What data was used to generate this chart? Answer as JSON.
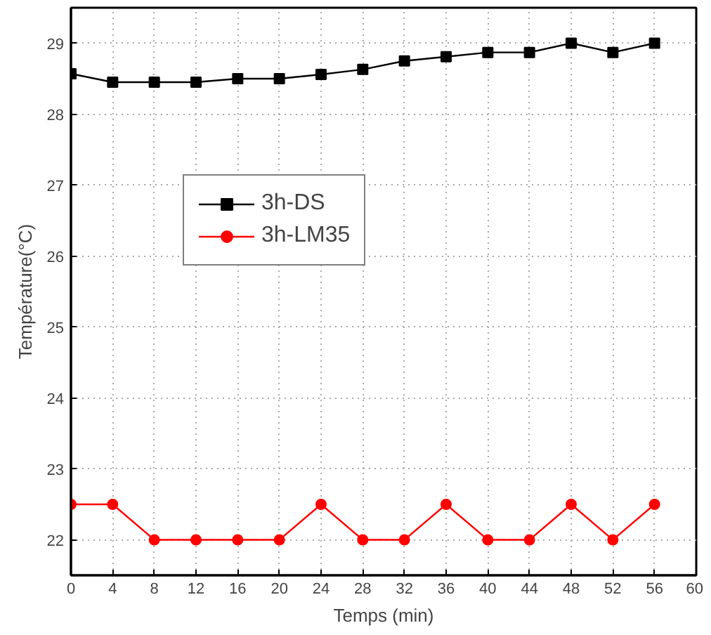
{
  "chart_data": {
    "type": "line",
    "xlabel": "Temps (min)",
    "ylabel": "Température(°C)",
    "x": [
      0,
      4,
      8,
      12,
      16,
      20,
      24,
      28,
      32,
      36,
      40,
      44,
      48,
      52,
      56
    ],
    "series": [
      {
        "name": "3h-DS",
        "color": "#000000",
        "marker": "square",
        "values": [
          28.57,
          28.45,
          28.45,
          28.45,
          28.5,
          28.5,
          28.56,
          28.63,
          28.75,
          28.81,
          28.87,
          28.87,
          29.0,
          28.87,
          29.0
        ]
      },
      {
        "name": "3h-LM35",
        "color": "#ff0000",
        "marker": "circle",
        "values": [
          22.5,
          22.5,
          22.0,
          22.0,
          22.0,
          22.0,
          22.5,
          22.0,
          22.0,
          22.5,
          22.0,
          22.0,
          22.5,
          22.0,
          22.5
        ]
      }
    ],
    "xlim": [
      0,
      60
    ],
    "xticks": [
      0,
      4,
      8,
      12,
      16,
      20,
      24,
      28,
      32,
      36,
      40,
      44,
      48,
      52,
      56,
      60
    ],
    "ylim": [
      21.5,
      29.5
    ],
    "yticks": [
      22,
      23,
      24,
      25,
      26,
      27,
      28,
      29
    ],
    "grid": true,
    "legend": "top left",
    "line_style": "solid"
  }
}
